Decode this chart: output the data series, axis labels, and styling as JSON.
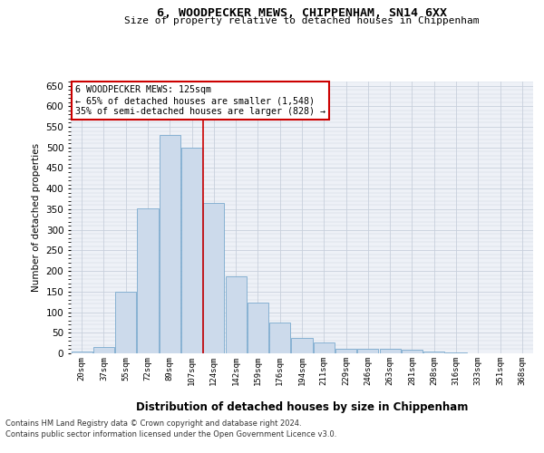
{
  "title1": "6, WOODPECKER MEWS, CHIPPENHAM, SN14 6XX",
  "title2": "Size of property relative to detached houses in Chippenham",
  "xlabel": "Distribution of detached houses by size in Chippenham",
  "ylabel": "Number of detached properties",
  "categories": [
    "20sqm",
    "37sqm",
    "55sqm",
    "72sqm",
    "89sqm",
    "107sqm",
    "124sqm",
    "142sqm",
    "159sqm",
    "176sqm",
    "194sqm",
    "211sqm",
    "229sqm",
    "246sqm",
    "263sqm",
    "281sqm",
    "298sqm",
    "316sqm",
    "333sqm",
    "351sqm",
    "368sqm"
  ],
  "values": [
    5,
    15,
    150,
    353,
    530,
    500,
    365,
    188,
    123,
    75,
    38,
    27,
    12,
    12,
    10,
    8,
    4,
    2,
    1,
    1,
    0
  ],
  "bar_color": "#ccdaeb",
  "bar_edge_color": "#7aaace",
  "annotation_text": "6 WOODPECKER MEWS: 125sqm\n← 65% of detached houses are smaller (1,548)\n35% of semi-detached houses are larger (828) →",
  "annotation_box_facecolor": "#ffffff",
  "annotation_box_edgecolor": "#cc0000",
  "vline_color": "#cc0000",
  "grid_color": "#c8d0dc",
  "background_color": "#eef1f7",
  "ylim": [
    0,
    660
  ],
  "yticks": [
    0,
    50,
    100,
    150,
    200,
    250,
    300,
    350,
    400,
    450,
    500,
    550,
    600,
    650
  ],
  "footnote1": "Contains HM Land Registry data © Crown copyright and database right 2024.",
  "footnote2": "Contains public sector information licensed under the Open Government Licence v3.0."
}
